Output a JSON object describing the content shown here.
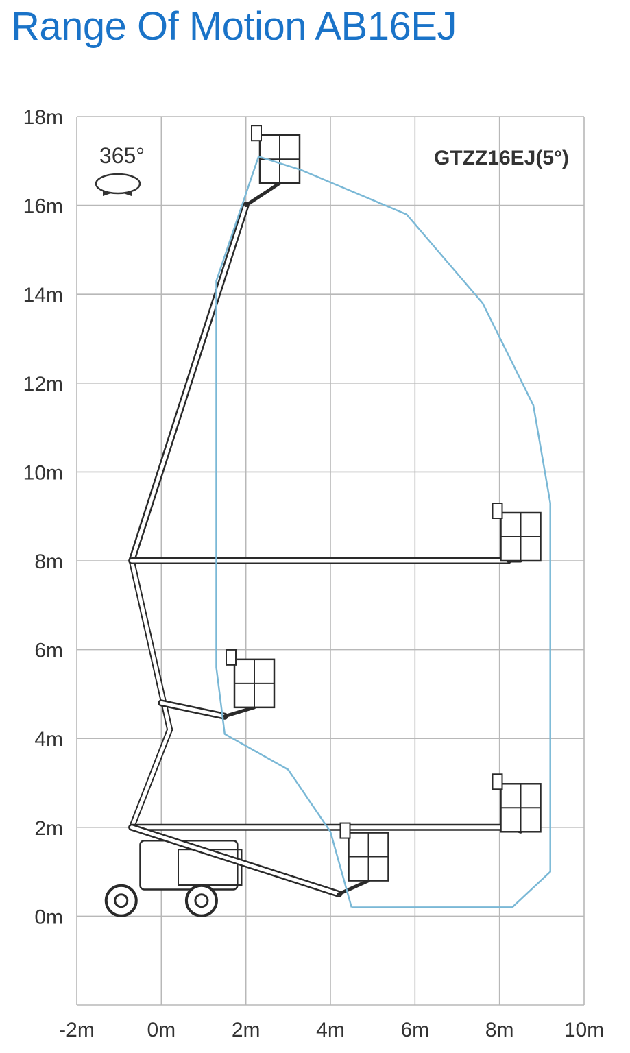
{
  "title": "Range Of Motion AB16EJ",
  "model_label": "GTZZ16EJ(5°)",
  "rotation_label": "365°",
  "icons": [
    "rotation-arrows-icon"
  ],
  "colors": {
    "title": "#1a73c8",
    "envelope": "#7ab8d6",
    "grid": "#b8b8b8",
    "machine": "#2a2a2a"
  },
  "chart_data": {
    "type": "diagram",
    "x_axis": {
      "ticks": [
        "-2m",
        "0m",
        "2m",
        "4m",
        "6m",
        "8m",
        "10m"
      ],
      "range": [
        -2,
        10
      ],
      "unit": "m"
    },
    "y_axis": {
      "ticks": [
        "18m",
        "16m",
        "14m",
        "12m",
        "10m",
        "8m",
        "6m",
        "4m",
        "2m",
        "0m"
      ],
      "range": [
        -2,
        18
      ],
      "unit": "m"
    },
    "grid": true,
    "envelope": [
      [
        4.5,
        0.2
      ],
      [
        8.3,
        0.2
      ],
      [
        9.2,
        1.0
      ],
      [
        9.2,
        9.3
      ],
      [
        8.8,
        11.5
      ],
      [
        7.6,
        13.8
      ],
      [
        5.8,
        15.8
      ],
      [
        3.3,
        16.8
      ],
      [
        2.3,
        17.1
      ],
      [
        1.3,
        14.3
      ],
      [
        1.3,
        5.6
      ],
      [
        1.5,
        4.1
      ],
      [
        3.0,
        3.3
      ],
      [
        4.0,
        1.9
      ],
      [
        4.5,
        0.2
      ]
    ],
    "machine_positions": [
      {
        "boom": [
          [
            -0.7,
            8.0
          ],
          [
            2.0,
            16.0
          ]
        ],
        "platform": [
          2.8,
          16.5
        ]
      },
      {
        "boom": [
          [
            -0.7,
            8.0
          ],
          [
            8.2,
            8.0
          ]
        ],
        "platform": [
          8.5,
          8.0
        ]
      },
      {
        "boom": [
          [
            0.0,
            4.8
          ],
          [
            1.5,
            4.5
          ]
        ],
        "platform": [
          2.2,
          4.7
        ]
      },
      {
        "boom": [
          [
            -0.7,
            2.0
          ],
          [
            8.2,
            2.0
          ]
        ],
        "platform": [
          8.5,
          1.9
        ]
      },
      {
        "boom": [
          [
            -0.7,
            2.0
          ],
          [
            4.2,
            0.5
          ]
        ],
        "platform": [
          4.9,
          0.8
        ]
      }
    ]
  }
}
